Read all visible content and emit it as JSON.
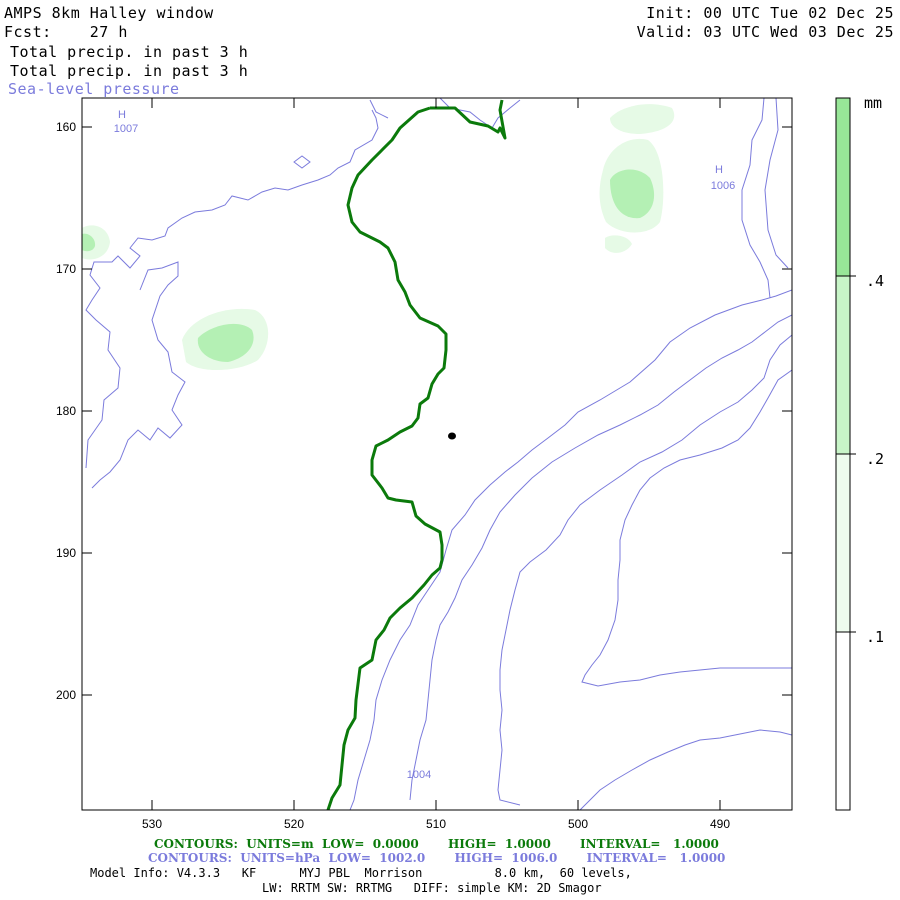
{
  "header": {
    "model_title": "AMPS 8km Halley window",
    "fcst": "Fcst:    27 h",
    "init": "Init: 00 UTC Tue 02 Dec 25",
    "valid": "Valid: 03 UTC Wed 03 Dec 25",
    "field_1": "Total precip. in past 3 h",
    "field_2": "Total precip. in past 3 h",
    "field_3": "Sea-level pressure"
  },
  "map": {
    "y_ticks": [
      "160",
      "170",
      "180",
      "190",
      "200"
    ],
    "x_ticks": [
      "530",
      "520",
      "510",
      "500",
      "490"
    ],
    "pressure_labels": [
      {
        "kind": "H",
        "value": "1007"
      },
      {
        "kind": "H",
        "value": "1006"
      }
    ],
    "contour_label": "1004",
    "colors": {
      "coastline": "#0b7a0b",
      "pressure": "#7b7bdc",
      "precip_light": "#e6fae6",
      "precip_mid": "#b4f0b4",
      "precip_dark": "#98e698"
    }
  },
  "colorbar": {
    "unit": "mm",
    "labels": [
      ".4",
      ".2",
      ".1"
    ]
  },
  "footer": {
    "green_line": "CONTOURS:  UNITS=m  LOW=  0.0000       HIGH=  1.0000       INTERVAL=   1.0000",
    "blue_line": "CONTOURS:  UNITS=hPa  LOW=  1002.0       HIGH=  1006.0       INTERVAL=   1.0000",
    "model_info": "Model Info: V4.3.3   KF      MYJ PBL  Morrison          8.0 km,  60 levels,",
    "physics": "LW: RRTM SW: RRTMG   DIFF: simple KM: 2D Smagor"
  }
}
